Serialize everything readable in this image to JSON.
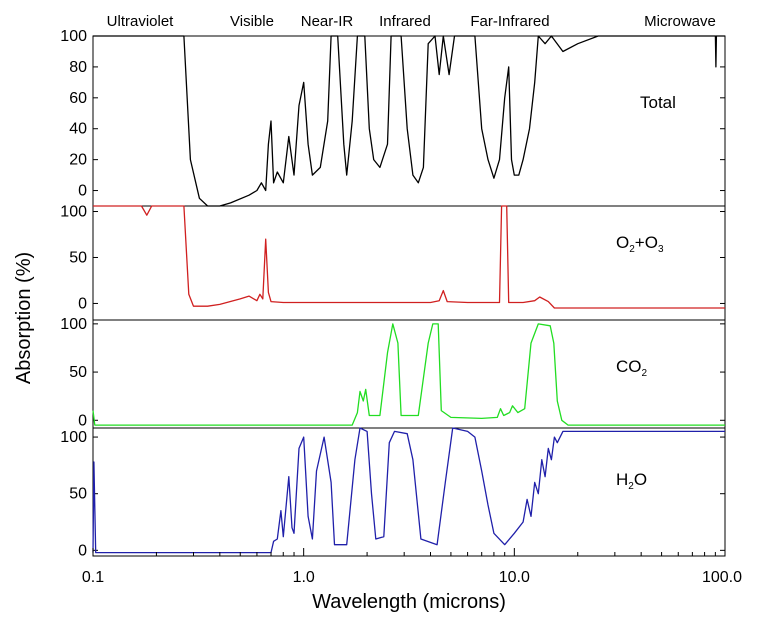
{
  "chart_data": {
    "type": "line",
    "ylabel": "Absorption (%)",
    "xlabel": "Wavelength (microns)",
    "x_scale": "log",
    "xlim": [
      0.1,
      100.0
    ],
    "x_ticks": [
      "0.1",
      "1.0",
      "10.0",
      "100.0"
    ],
    "bands": [
      "Ultraviolet",
      "Visible",
      "Near-IR",
      "Infrared",
      "Far-Infrared",
      "Microwave"
    ],
    "panels": [
      {
        "name": "Total",
        "label_main": "Total",
        "label_sub1": "",
        "label_mid": "",
        "label_sub2": "",
        "color": "#000000",
        "y_ticks": [
          "100",
          "80",
          "60",
          "40",
          "20",
          "0"
        ],
        "tick_values": [
          100,
          80,
          60,
          40,
          20,
          0
        ],
        "ylim": [
          -10,
          100
        ],
        "points": [
          [
            0.1,
            100
          ],
          [
            0.27,
            100
          ],
          [
            0.29,
            20
          ],
          [
            0.32,
            -5
          ],
          [
            0.35,
            -10
          ],
          [
            0.4,
            -10
          ],
          [
            0.45,
            -8
          ],
          [
            0.55,
            -3
          ],
          [
            0.6,
            0
          ],
          [
            0.63,
            5
          ],
          [
            0.66,
            0
          ],
          [
            0.68,
            30
          ],
          [
            0.7,
            45
          ],
          [
            0.72,
            5
          ],
          [
            0.75,
            12
          ],
          [
            0.8,
            5
          ],
          [
            0.85,
            35
          ],
          [
            0.9,
            10
          ],
          [
            0.95,
            55
          ],
          [
            1.0,
            70
          ],
          [
            1.05,
            30
          ],
          [
            1.1,
            10
          ],
          [
            1.2,
            15
          ],
          [
            1.3,
            45
          ],
          [
            1.35,
            100
          ],
          [
            1.45,
            100
          ],
          [
            1.55,
            30
          ],
          [
            1.6,
            10
          ],
          [
            1.7,
            45
          ],
          [
            1.8,
            100
          ],
          [
            1.95,
            100
          ],
          [
            2.05,
            40
          ],
          [
            2.15,
            20
          ],
          [
            2.3,
            15
          ],
          [
            2.5,
            30
          ],
          [
            2.6,
            100
          ],
          [
            2.9,
            100
          ],
          [
            3.1,
            40
          ],
          [
            3.3,
            10
          ],
          [
            3.5,
            5
          ],
          [
            3.7,
            15
          ],
          [
            3.9,
            95
          ],
          [
            4.2,
            100
          ],
          [
            4.4,
            75
          ],
          [
            4.6,
            100
          ],
          [
            4.9,
            75
          ],
          [
            5.2,
            100
          ],
          [
            5.8,
            100
          ],
          [
            6.5,
            100
          ],
          [
            7.0,
            40
          ],
          [
            7.5,
            20
          ],
          [
            8.0,
            8
          ],
          [
            8.5,
            20
          ],
          [
            9.0,
            60
          ],
          [
            9.4,
            80
          ],
          [
            9.7,
            20
          ],
          [
            10.0,
            10
          ],
          [
            10.5,
            10
          ],
          [
            11.0,
            20
          ],
          [
            11.8,
            40
          ],
          [
            12.5,
            70
          ],
          [
            13.0,
            100
          ],
          [
            14.0,
            95
          ],
          [
            15.0,
            100
          ],
          [
            17.0,
            90
          ],
          [
            20.0,
            95
          ],
          [
            25.0,
            100
          ],
          [
            90.0,
            100
          ],
          [
            90.5,
            80
          ],
          [
            91.0,
            100
          ],
          [
            100.0,
            100
          ]
        ]
      },
      {
        "name": "O2+O3",
        "label_main": "O",
        "label_sub1": "2",
        "label_mid": "+O",
        "label_sub2": "3",
        "color": "#d02020",
        "y_ticks": [
          "100",
          "50",
          "0"
        ],
        "tick_values": [
          100,
          50,
          0
        ],
        "ylim": [
          -18,
          106
        ],
        "points": [
          [
            0.1,
            106
          ],
          [
            0.17,
            106
          ],
          [
            0.18,
            96
          ],
          [
            0.19,
            106
          ],
          [
            0.27,
            106
          ],
          [
            0.285,
            10
          ],
          [
            0.3,
            -3
          ],
          [
            0.35,
            -3
          ],
          [
            0.4,
            -1
          ],
          [
            0.5,
            5
          ],
          [
            0.55,
            8
          ],
          [
            0.6,
            3
          ],
          [
            0.62,
            10
          ],
          [
            0.64,
            5
          ],
          [
            0.66,
            70
          ],
          [
            0.68,
            12
          ],
          [
            0.7,
            2
          ],
          [
            0.8,
            1
          ],
          [
            1.0,
            1
          ],
          [
            2.0,
            1
          ],
          [
            4.0,
            1
          ],
          [
            4.4,
            3
          ],
          [
            4.6,
            14
          ],
          [
            4.8,
            2
          ],
          [
            6.0,
            1
          ],
          [
            8.5,
            1
          ],
          [
            8.7,
            106
          ],
          [
            9.2,
            106
          ],
          [
            9.4,
            1
          ],
          [
            11.0,
            1
          ],
          [
            12.5,
            3
          ],
          [
            13.2,
            7
          ],
          [
            14.5,
            2
          ],
          [
            15.5,
            -5
          ],
          [
            20.0,
            -5
          ],
          [
            100.0,
            -5
          ]
        ]
      },
      {
        "name": "CO2",
        "label_main": "CO",
        "label_sub1": "2",
        "label_mid": "",
        "label_sub2": "",
        "color": "#22dd22",
        "y_ticks": [
          "100",
          "50",
          "0"
        ],
        "tick_values": [
          100,
          50,
          0
        ],
        "ylim": [
          -8,
          104
        ],
        "points": [
          [
            0.1,
            10
          ],
          [
            0.102,
            -5
          ],
          [
            0.4,
            -5
          ],
          [
            1.0,
            -5
          ],
          [
            1.7,
            -5
          ],
          [
            1.8,
            8
          ],
          [
            1.85,
            30
          ],
          [
            1.92,
            20
          ],
          [
            1.97,
            32
          ],
          [
            2.05,
            5
          ],
          [
            2.3,
            5
          ],
          [
            2.5,
            70
          ],
          [
            2.65,
            100
          ],
          [
            2.8,
            80
          ],
          [
            2.9,
            5
          ],
          [
            3.5,
            5
          ],
          [
            3.9,
            80
          ],
          [
            4.1,
            100
          ],
          [
            4.35,
            100
          ],
          [
            4.5,
            10
          ],
          [
            5.0,
            3
          ],
          [
            7.0,
            2
          ],
          [
            8.3,
            3
          ],
          [
            8.6,
            12
          ],
          [
            8.9,
            5
          ],
          [
            9.5,
            8
          ],
          [
            9.8,
            15
          ],
          [
            10.4,
            8
          ],
          [
            11.2,
            12
          ],
          [
            12.0,
            80
          ],
          [
            13.0,
            100
          ],
          [
            14.8,
            98
          ],
          [
            15.4,
            80
          ],
          [
            16.0,
            20
          ],
          [
            16.8,
            0
          ],
          [
            18.0,
            -5
          ],
          [
            100.0,
            -5
          ]
        ]
      },
      {
        "name": "H2O",
        "label_main": "H",
        "label_sub1": "2",
        "label_mid": "O",
        "label_sub2": "",
        "color": "#2020aa",
        "y_ticks": [
          "100",
          "50",
          "0"
        ],
        "tick_values": [
          100,
          50,
          0
        ],
        "ylim": [
          -5,
          108
        ],
        "points": [
          [
            0.1,
            -2
          ],
          [
            0.101,
            78
          ],
          [
            0.103,
            -2
          ],
          [
            0.2,
            -2
          ],
          [
            0.7,
            -2
          ],
          [
            0.72,
            8
          ],
          [
            0.75,
            10
          ],
          [
            0.78,
            35
          ],
          [
            0.8,
            12
          ],
          [
            0.85,
            65
          ],
          [
            0.88,
            20
          ],
          [
            0.9,
            15
          ],
          [
            0.95,
            90
          ],
          [
            1.0,
            100
          ],
          [
            1.05,
            30
          ],
          [
            1.1,
            10
          ],
          [
            1.15,
            70
          ],
          [
            1.25,
            100
          ],
          [
            1.35,
            60
          ],
          [
            1.4,
            5
          ],
          [
            1.6,
            5
          ],
          [
            1.75,
            80
          ],
          [
            1.85,
            108
          ],
          [
            2.0,
            105
          ],
          [
            2.1,
            50
          ],
          [
            2.2,
            10
          ],
          [
            2.4,
            12
          ],
          [
            2.55,
            95
          ],
          [
            2.7,
            105
          ],
          [
            3.1,
            103
          ],
          [
            3.3,
            80
          ],
          [
            3.6,
            10
          ],
          [
            4.3,
            5
          ],
          [
            4.7,
            60
          ],
          [
            5.1,
            108
          ],
          [
            6.0,
            105
          ],
          [
            6.5,
            100
          ],
          [
            7.0,
            70
          ],
          [
            7.5,
            40
          ],
          [
            8.0,
            15
          ],
          [
            9.0,
            5
          ],
          [
            10.0,
            15
          ],
          [
            11.0,
            25
          ],
          [
            11.5,
            45
          ],
          [
            12.0,
            30
          ],
          [
            12.5,
            60
          ],
          [
            13.0,
            50
          ],
          [
            13.5,
            80
          ],
          [
            14.0,
            65
          ],
          [
            14.5,
            90
          ],
          [
            15.0,
            80
          ],
          [
            15.5,
            100
          ],
          [
            16.0,
            95
          ],
          [
            17.0,
            105
          ],
          [
            18.0,
            105
          ],
          [
            100.0,
            105
          ]
        ]
      }
    ]
  }
}
